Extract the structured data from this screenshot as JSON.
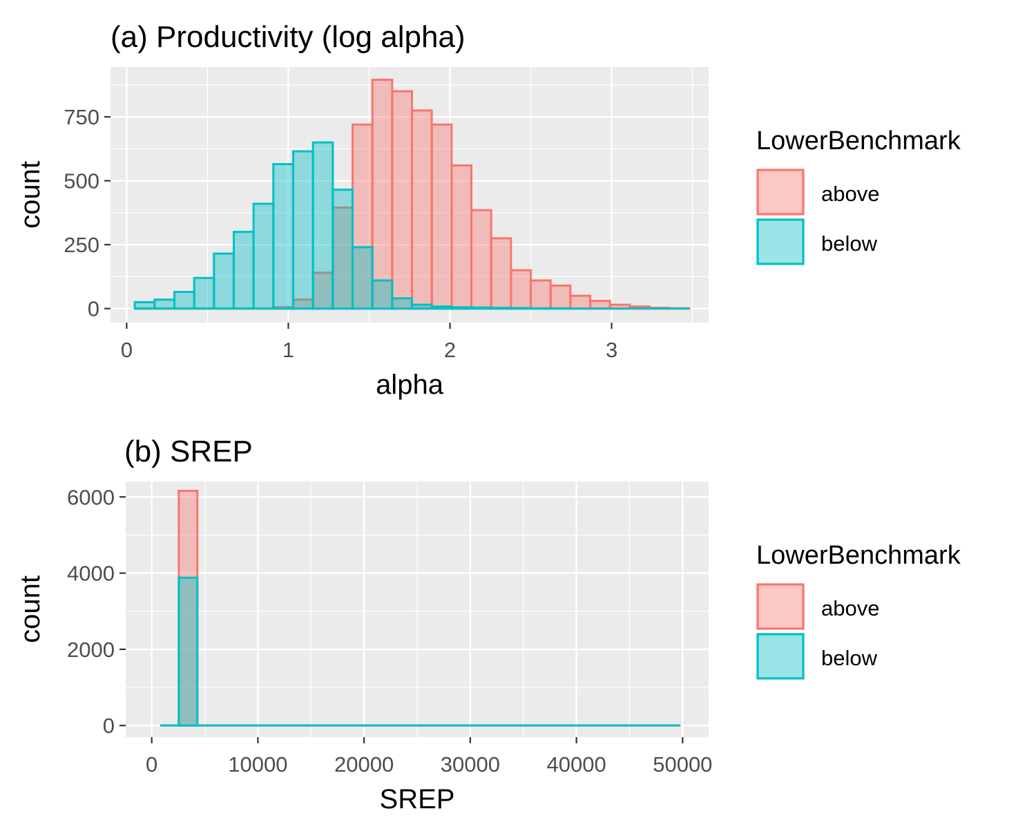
{
  "chart_data": [
    {
      "type": "bar",
      "title": "(a) Productivity (log alpha)",
      "xlabel": "alpha",
      "ylabel": "count",
      "xlim": [
        -0.1,
        3.6
      ],
      "ylim": [
        -55,
        945
      ],
      "x_ticks": [
        0,
        1,
        2,
        3
      ],
      "y_ticks": [
        0,
        250,
        500,
        750
      ],
      "y_tick_labels": [
        "0",
        "250",
        "500",
        "750"
      ],
      "x_tick_labels": [
        "0",
        "1",
        "2",
        "3"
      ],
      "grid": true,
      "legend_position": "right",
      "legend": {
        "title": "LowerBenchmark",
        "entries": [
          {
            "label": "above",
            "fill": "#F8766D",
            "outline": "#F8766D"
          },
          {
            "label": "below",
            "fill": "#00BFC4",
            "outline": "#00BFC4"
          }
        ]
      },
      "bin_start": 0.05,
      "bin_width": 0.1225,
      "series": [
        {
          "name": "below",
          "values": [
            25,
            35,
            65,
            120,
            215,
            300,
            410,
            565,
            615,
            650,
            465,
            240,
            110,
            40,
            15,
            8,
            5,
            4,
            3,
            2,
            1,
            1,
            0,
            0,
            0,
            0,
            0,
            0
          ]
        },
        {
          "name": "above",
          "values": [
            0,
            0,
            0,
            0,
            0,
            0,
            0,
            5,
            35,
            140,
            395,
            720,
            895,
            850,
            775,
            720,
            560,
            385,
            275,
            150,
            110,
            90,
            50,
            30,
            15,
            8,
            3,
            1
          ]
        }
      ]
    },
    {
      "type": "bar",
      "title": "(b) SREP",
      "xlabel": "SREP",
      "ylabel": "count",
      "xlim": [
        -2450,
        52450
      ],
      "ylim": [
        -305,
        6405
      ],
      "x_ticks": [
        0,
        10000,
        20000,
        30000,
        40000,
        50000
      ],
      "y_ticks": [
        0,
        2000,
        4000,
        6000
      ],
      "y_tick_labels": [
        "0",
        "2000",
        "4000",
        "6000"
      ],
      "x_tick_labels": [
        "0",
        "10000",
        "20000",
        "30000",
        "40000",
        "50000"
      ],
      "grid": true,
      "legend_position": "right",
      "legend": {
        "title": "LowerBenchmark",
        "entries": [
          {
            "label": "above",
            "fill": "#F8766D",
            "outline": "#F8766D"
          },
          {
            "label": "below",
            "fill": "#00BFC4",
            "outline": "#00BFC4"
          }
        ]
      },
      "bin_start": 800,
      "bin_width": 1750,
      "series": [
        {
          "name": "below",
          "values": [
            0,
            3880,
            0,
            0,
            0,
            0,
            0,
            0,
            0,
            0,
            0,
            0,
            0,
            0,
            0,
            0,
            0,
            0,
            0,
            0,
            0,
            0,
            0,
            0,
            0,
            0,
            0,
            0
          ]
        },
        {
          "name": "above",
          "values": [
            0,
            6160,
            0,
            0,
            0,
            0,
            0,
            0,
            0,
            0,
            0,
            0,
            0,
            0,
            0,
            0,
            0,
            0,
            0,
            0,
            0,
            0,
            0,
            0,
            0,
            0,
            0,
            0
          ]
        }
      ]
    }
  ]
}
